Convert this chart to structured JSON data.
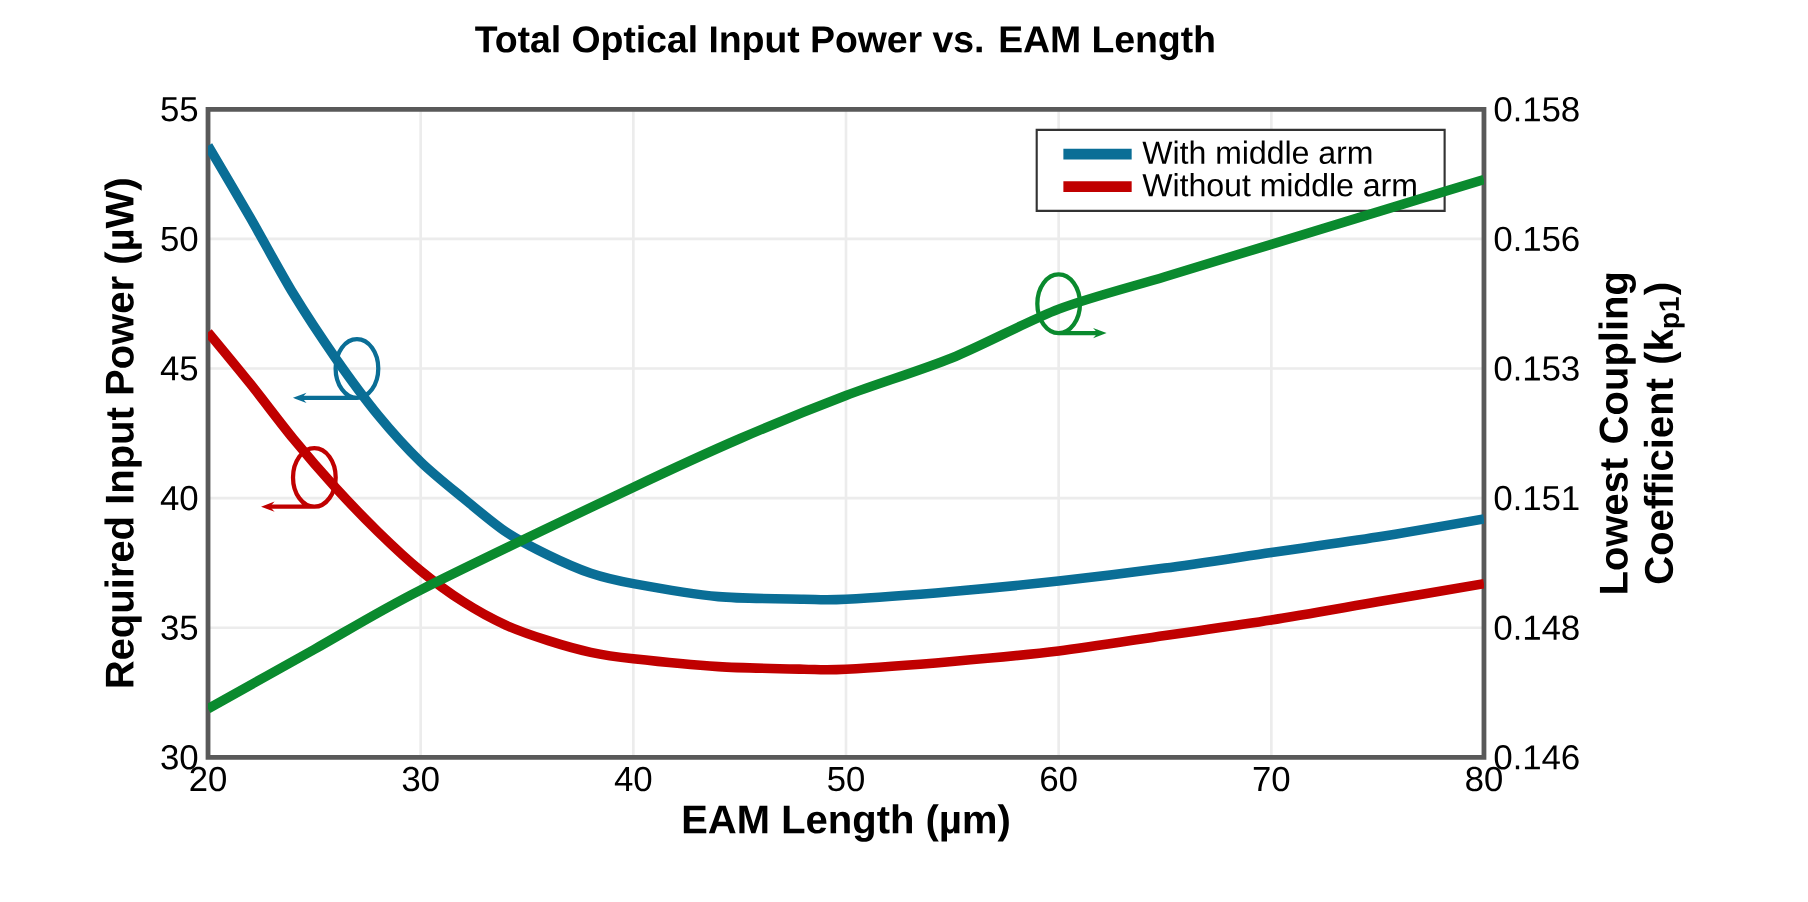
{
  "chart_data": {
    "type": "line",
    "title": "Total Optical Input Power vs. EAM Length",
    "xlabel": "EAM Length (µm)",
    "ylabel": "Required Input Power (µW)",
    "y2label": "Lowest Coupling Coefficient (k$_{p1}$)",
    "xlim": [
      20,
      80
    ],
    "xticks": [
      20,
      30,
      40,
      50,
      60,
      70,
      80
    ],
    "ylim": [
      30,
      55
    ],
    "yticks": [
      30,
      35,
      40,
      45,
      50,
      55
    ],
    "y2lim": [
      0.146,
      0.158
    ],
    "y2ticks": [
      {
        "value": 0.146,
        "label": "0.146"
      },
      {
        "value": 0.1484,
        "label": "0.148"
      },
      {
        "value": 0.1508,
        "label": "0.151"
      },
      {
        "value": 0.1532,
        "label": "0.153"
      },
      {
        "value": 0.1556,
        "label": "0.156"
      },
      {
        "value": 0.158,
        "label": "0.158"
      }
    ],
    "grid": true,
    "legend": "top right",
    "line_style": "solid",
    "series": [
      {
        "name": "With middle arm",
        "color": "#0a6e96",
        "x": [
          20,
          22,
          24,
          26,
          28,
          30,
          32,
          34,
          36,
          38,
          40,
          44,
          48,
          50,
          55,
          60,
          65,
          70,
          75,
          80
        ],
        "values": [
          53.6,
          50.8,
          47.9,
          45.4,
          43.2,
          41.4,
          40.0,
          38.7,
          37.8,
          37.1,
          36.7,
          36.2,
          36.1,
          36.1,
          36.4,
          36.8,
          37.3,
          37.9,
          38.5,
          39.2
        ]
      },
      {
        "name": "Without middle arm",
        "color": "#c00000",
        "x": [
          20,
          22,
          24,
          26,
          28,
          30,
          32,
          34,
          36,
          38,
          40,
          44,
          48,
          50,
          55,
          60,
          65,
          70,
          75,
          80
        ],
        "values": [
          46.4,
          44.4,
          42.3,
          40.4,
          38.7,
          37.2,
          36.0,
          35.1,
          34.5,
          34.05,
          33.8,
          33.5,
          33.4,
          33.4,
          33.7,
          34.1,
          34.7,
          35.3,
          36.0,
          36.7
        ]
      },
      {
        "color": "#0a8a2e",
        "axis": "y2",
        "x": [
          20,
          25,
          30,
          40,
          45,
          50,
          55,
          60,
          65,
          70,
          75,
          80
        ],
        "values": [
          0.1469,
          0.148,
          0.1491,
          0.151,
          0.1519,
          0.1527,
          0.1534,
          0.1543,
          0.1549,
          0.1555,
          0.1561,
          0.1567
        ]
      }
    ]
  }
}
